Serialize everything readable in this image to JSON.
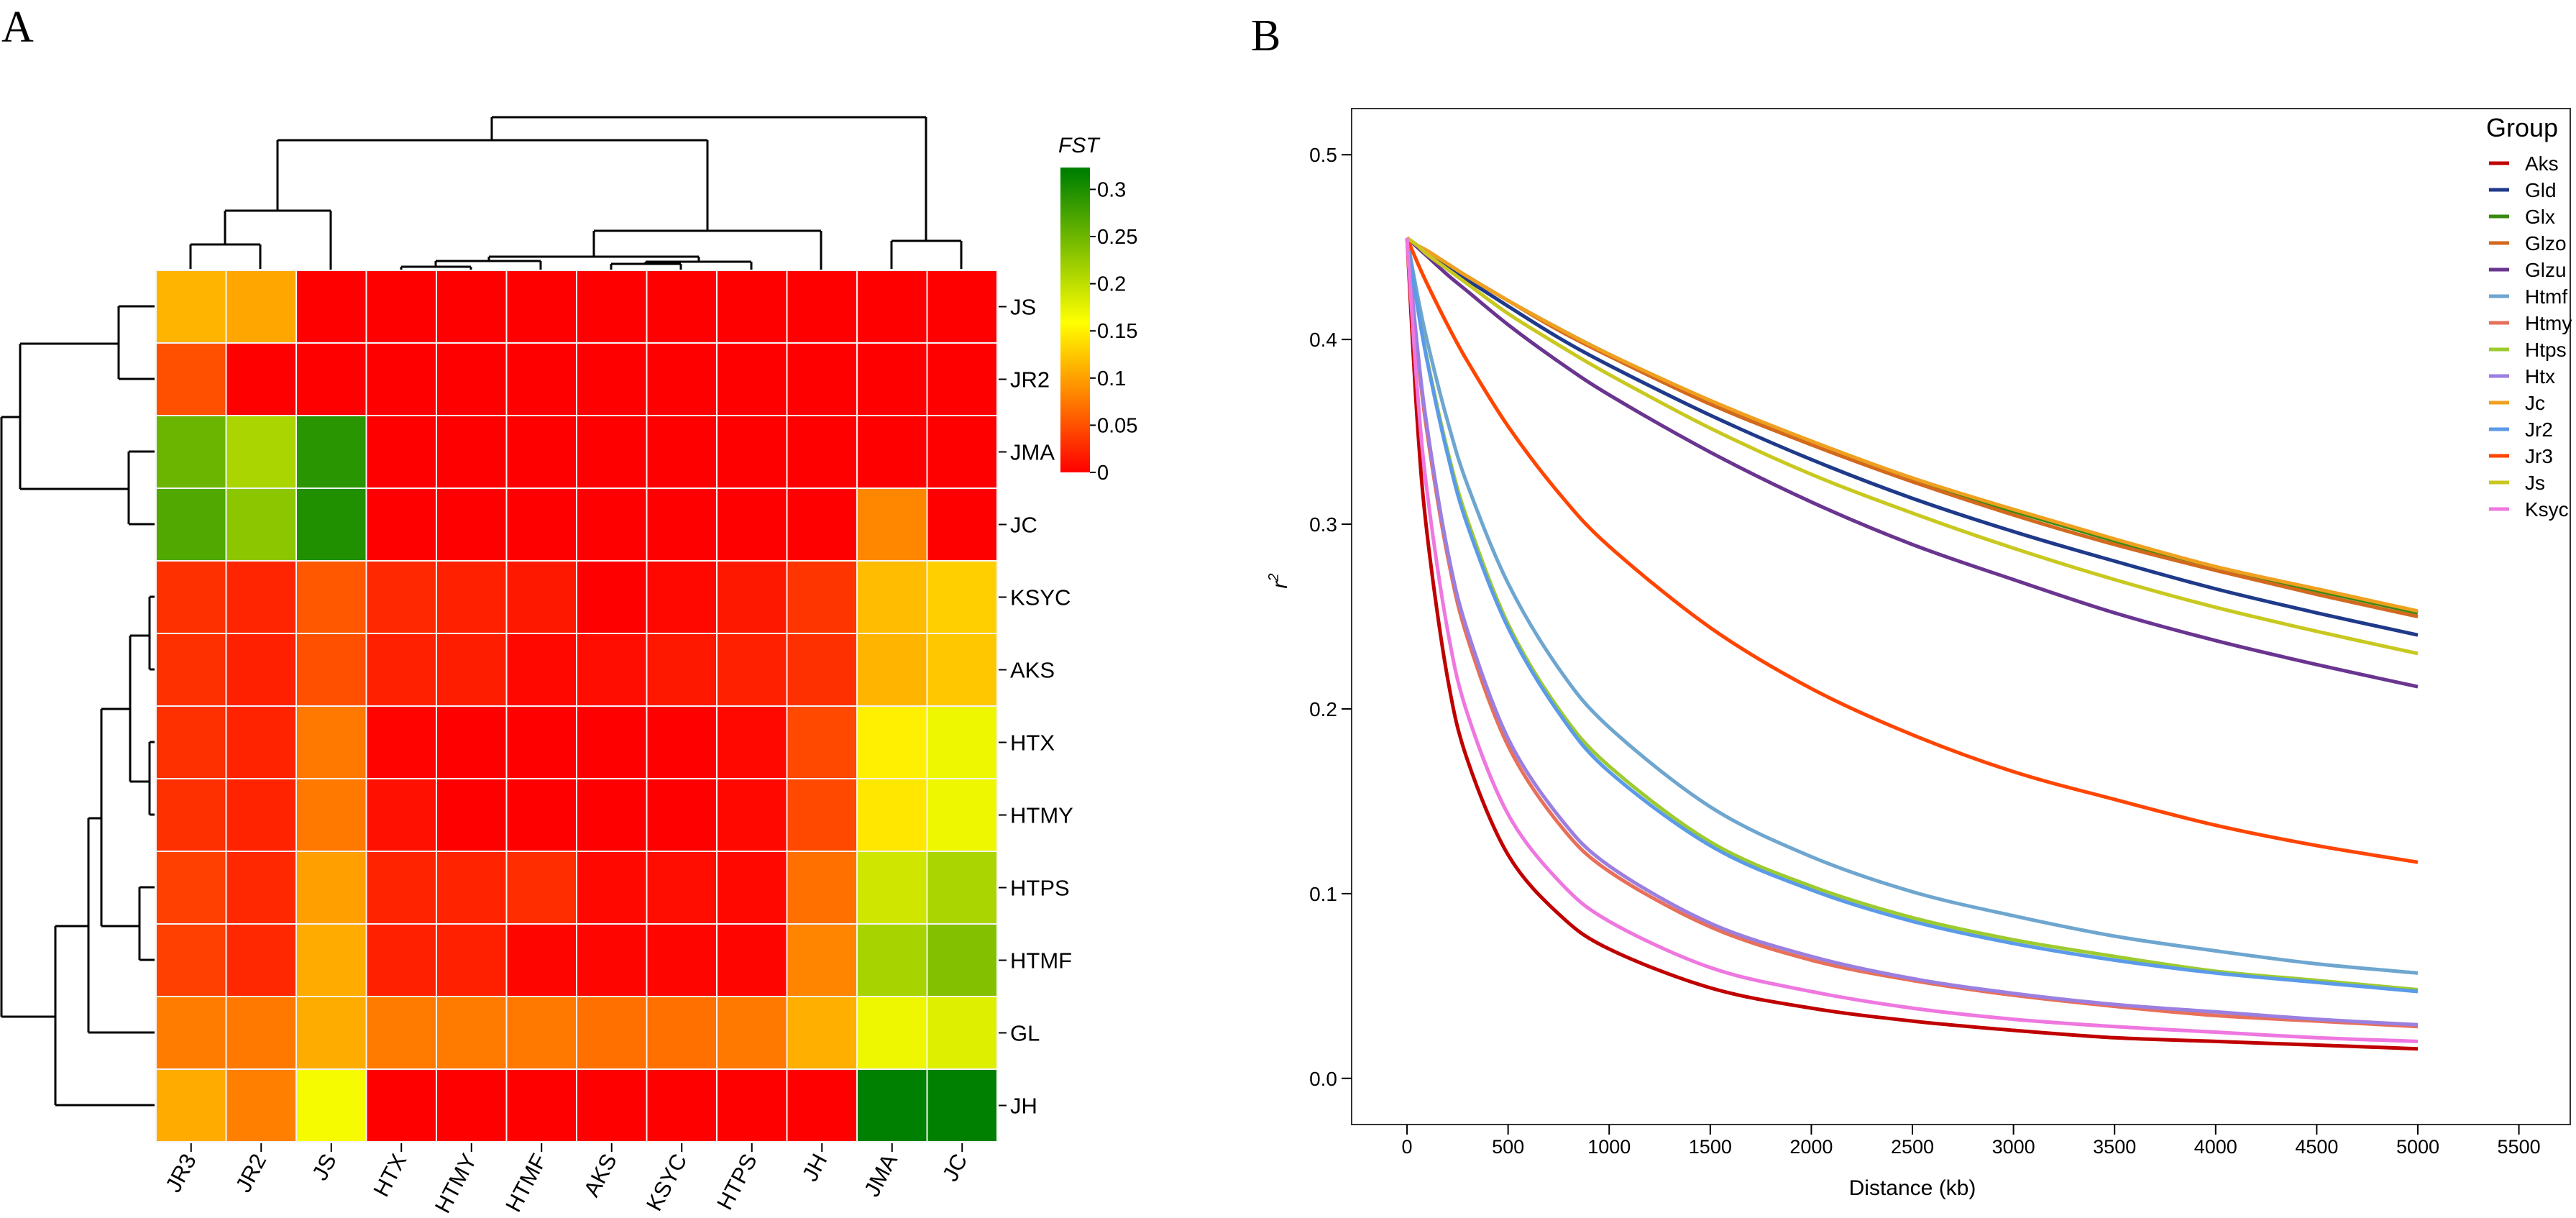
{
  "panel_labels": {
    "a": "A",
    "b": "B"
  },
  "chart_data": [
    {
      "type": "heatmap",
      "title": "",
      "colorbar": {
        "title": "FST",
        "ticks": [
          0,
          0.05,
          0.1,
          0.15,
          0.2,
          0.25,
          0.3
        ],
        "tick_labels": [
          "0",
          "0.05",
          "0.1",
          "0.15",
          "0.2",
          "0.25",
          "0.3"
        ],
        "range": [
          0,
          0.325
        ],
        "colors": {
          "low": "#FF0000",
          "mid": "#FFFF00",
          "high": "#008000"
        }
      },
      "columns": [
        "JR3",
        "JR2",
        "JS",
        "HTX",
        "HTMY",
        "HTMF",
        "AKS",
        "KSYC",
        "HTPS",
        "JH",
        "JMA",
        "JC"
      ],
      "rows": [
        "JS",
        "JR2",
        "JMA",
        "JC",
        "KSYC",
        "AKS",
        "HTX",
        "HTMY",
        "HTPS",
        "HTMF",
        "GL",
        "JH"
      ],
      "values": [
        [
          0.113,
          0.105,
          0,
          0,
          0,
          0,
          0,
          0,
          0,
          0,
          0,
          0
        ],
        [
          0.05,
          0,
          0,
          0,
          0,
          0,
          0,
          0,
          0,
          0,
          0,
          0
        ],
        [
          0.253,
          0.213,
          0.294,
          0,
          0,
          0,
          0,
          0,
          0,
          0,
          0,
          0
        ],
        [
          0.27,
          0.232,
          0.3,
          0,
          0,
          0,
          0,
          0,
          0,
          0,
          0.085,
          0
        ],
        [
          0.03,
          0.023,
          0.055,
          0.025,
          0.02,
          0.015,
          0,
          0.005,
          0.015,
          0.033,
          0.118,
          0.13
        ],
        [
          0.03,
          0.02,
          0.05,
          0.02,
          0.018,
          0.005,
          0.008,
          0.015,
          0.02,
          0.03,
          0.113,
          0.125
        ],
        [
          0.03,
          0.022,
          0.075,
          0.002,
          0,
          0,
          0,
          0,
          0.005,
          0.045,
          0.15,
          0.17
        ],
        [
          0.03,
          0.022,
          0.075,
          0.01,
          0,
          0,
          0,
          0,
          0.005,
          0.045,
          0.145,
          0.17
        ],
        [
          0.04,
          0.025,
          0.1,
          0.022,
          0.022,
          0.028,
          0.005,
          0.008,
          0.005,
          0.07,
          0.19,
          0.213
        ],
        [
          0.04,
          0.025,
          0.107,
          0.02,
          0.02,
          0.003,
          0.003,
          0.003,
          0.003,
          0.083,
          0.215,
          0.238
        ],
        [
          0.078,
          0.075,
          0.108,
          0.077,
          0.077,
          0.075,
          0.07,
          0.07,
          0.075,
          0.11,
          0.17,
          0.18
        ],
        [
          0.107,
          0.08,
          0.165,
          0,
          0,
          0,
          0,
          0,
          0,
          0,
          0.32,
          0.32
        ]
      ]
    },
    {
      "type": "line",
      "title": "",
      "xlabel": "Distance (kb)",
      "ylabel": "r",
      "ylabel_sup": "2",
      "xlim": [
        -274,
        5754
      ],
      "ylim": [
        -0.025,
        0.525
      ],
      "xticks": [
        0,
        500,
        1000,
        1500,
        2000,
        2500,
        3000,
        3500,
        4000,
        4500,
        5000,
        5500
      ],
      "yticks": [
        0.0,
        0.1,
        0.2,
        0.3,
        0.4,
        0.5
      ],
      "ytick_labels": [
        "0.0",
        "0.1",
        "0.2",
        "0.3",
        "0.4",
        "0.5"
      ],
      "grid": false,
      "legend": {
        "title": "Group",
        "placement": "top-right"
      },
      "x": [
        0,
        50,
        100,
        200,
        300,
        500,
        750,
        1000,
        1500,
        2000,
        2500,
        3000,
        3500,
        4000,
        4500,
        5000
      ],
      "series": [
        {
          "name": "Aks",
          "color": "#C00000",
          "values": [
            0.455,
            0.357,
            0.294,
            0.217,
            0.172,
            0.121,
            0.089,
            0.07,
            0.049,
            0.038,
            0.031,
            0.026,
            0.022,
            0.02,
            0.018,
            0.016
          ]
        },
        {
          "name": "Gld",
          "color": "#1F3A8A",
          "values": [
            0.455,
            0.451,
            0.447,
            0.439,
            0.432,
            0.418,
            0.401,
            0.386,
            0.359,
            0.335,
            0.314,
            0.296,
            0.28,
            0.265,
            0.252,
            0.24
          ]
        },
        {
          "name": "Glx",
          "color": "#3A8A10",
          "values": [
            0.455,
            0.451,
            0.448,
            0.441,
            0.434,
            0.421,
            0.406,
            0.392,
            0.366,
            0.344,
            0.324,
            0.307,
            0.291,
            0.276,
            0.264,
            0.252
          ]
        },
        {
          "name": "Glzo",
          "color": "#D2691E",
          "values": [
            0.455,
            0.451,
            0.448,
            0.441,
            0.434,
            0.421,
            0.405,
            0.391,
            0.365,
            0.343,
            0.323,
            0.305,
            0.289,
            0.275,
            0.262,
            0.25
          ]
        },
        {
          "name": "Glzu",
          "color": "#6A3590",
          "values": [
            0.455,
            0.45,
            0.445,
            0.435,
            0.426,
            0.408,
            0.388,
            0.37,
            0.339,
            0.312,
            0.289,
            0.27,
            0.252,
            0.237,
            0.224,
            0.212
          ]
        },
        {
          "name": "Htmf",
          "color": "#6EA6CF",
          "values": [
            0.455,
            0.425,
            0.399,
            0.356,
            0.321,
            0.268,
            0.222,
            0.19,
            0.147,
            0.12,
            0.101,
            0.088,
            0.077,
            0.069,
            0.062,
            0.057
          ]
        },
        {
          "name": "Htmy",
          "color": "#E8705A",
          "values": [
            0.455,
            0.395,
            0.349,
            0.283,
            0.238,
            0.18,
            0.138,
            0.112,
            0.082,
            0.064,
            0.053,
            0.045,
            0.039,
            0.034,
            0.031,
            0.028
          ]
        },
        {
          "name": "Htps",
          "color": "#9CCB30",
          "values": [
            0.455,
            0.419,
            0.389,
            0.34,
            0.302,
            0.246,
            0.2,
            0.169,
            0.128,
            0.104,
            0.087,
            0.075,
            0.066,
            0.058,
            0.053,
            0.048
          ]
        },
        {
          "name": "Htx",
          "color": "#9B7FE0",
          "values": [
            0.455,
            0.397,
            0.352,
            0.286,
            0.242,
            0.184,
            0.142,
            0.115,
            0.084,
            0.066,
            0.054,
            0.046,
            0.04,
            0.036,
            0.032,
            0.029
          ]
        },
        {
          "name": "Jc",
          "color": "#F0A020",
          "values": [
            0.455,
            0.451,
            0.448,
            0.441,
            0.434,
            0.421,
            0.406,
            0.392,
            0.367,
            0.345,
            0.325,
            0.308,
            0.292,
            0.277,
            0.265,
            0.253
          ]
        },
        {
          "name": "Jr2",
          "color": "#5B9AE8",
          "values": [
            0.455,
            0.419,
            0.388,
            0.338,
            0.299,
            0.244,
            0.198,
            0.166,
            0.126,
            0.102,
            0.085,
            0.073,
            0.064,
            0.057,
            0.052,
            0.047
          ]
        },
        {
          "name": "Jr3",
          "color": "#FF4500",
          "values": [
            0.455,
            0.442,
            0.43,
            0.408,
            0.388,
            0.353,
            0.317,
            0.288,
            0.244,
            0.211,
            0.186,
            0.166,
            0.151,
            0.137,
            0.126,
            0.117
          ]
        },
        {
          "name": "Js",
          "color": "#C8C820",
          "values": [
            0.455,
            0.451,
            0.446,
            0.438,
            0.43,
            0.414,
            0.397,
            0.381,
            0.352,
            0.327,
            0.306,
            0.287,
            0.27,
            0.255,
            0.242,
            0.23
          ]
        },
        {
          "name": "Ksyc",
          "color": "#EE77E0",
          "values": [
            0.455,
            0.374,
            0.317,
            0.243,
            0.197,
            0.143,
            0.107,
            0.085,
            0.06,
            0.047,
            0.038,
            0.032,
            0.028,
            0.025,
            0.022,
            0.02
          ]
        }
      ]
    }
  ]
}
